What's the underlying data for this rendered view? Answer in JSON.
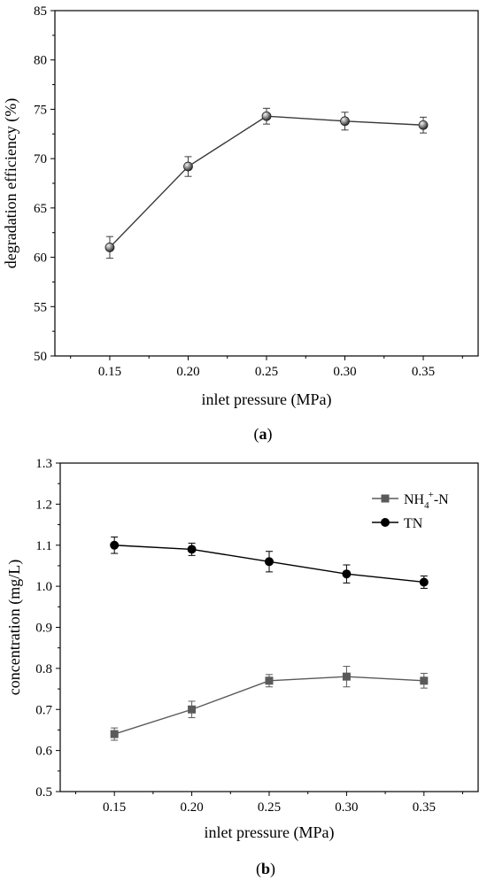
{
  "chart_data": [
    {
      "type": "line",
      "panel_label": "a",
      "xlabel": "inlet pressure (MPa)",
      "ylabel": "degradation efficiency (%)",
      "categories": [
        "0.15",
        "0.20",
        "0.25",
        "0.30",
        "0.35"
      ],
      "x": [
        0.15,
        0.2,
        0.25,
        0.3,
        0.35
      ],
      "xlim": [
        0.115,
        0.385
      ],
      "ylim": [
        50,
        85
      ],
      "yticks": [
        "50",
        "55",
        "60",
        "65",
        "70",
        "75",
        "80",
        "85"
      ],
      "grid": false,
      "legend": "none",
      "series": [
        {
          "values": [
            61.0,
            69.2,
            74.3,
            73.8,
            73.4
          ],
          "errors": [
            1.1,
            1.0,
            0.8,
            0.9,
            0.8
          ],
          "color": "#3a3a3a",
          "marker": "sphere"
        }
      ]
    },
    {
      "type": "line",
      "panel_label": "b",
      "xlabel": "inlet pressure (MPa)",
      "ylabel": "concentration (mg/L)",
      "categories": [
        "0.15",
        "0.20",
        "0.25",
        "0.30",
        "0.35"
      ],
      "x": [
        0.15,
        0.2,
        0.25,
        0.3,
        0.35
      ],
      "xlim": [
        0.115,
        0.385
      ],
      "ylim": [
        0.5,
        1.3
      ],
      "yticks": [
        "0.5",
        "0.6",
        "0.7",
        "0.8",
        "0.9",
        "1.0",
        "1.1",
        "1.2",
        "1.3"
      ],
      "grid": false,
      "legend": "top-right",
      "series": [
        {
          "name": "NH4+-N",
          "legend_base": "NH",
          "legend_sub": "4",
          "legend_sup": "+",
          "legend_tail": "-N",
          "values": [
            0.64,
            0.7,
            0.77,
            0.78,
            0.77
          ],
          "errors": [
            0.015,
            0.02,
            0.015,
            0.025,
            0.018
          ],
          "color": "#5a5a5a",
          "marker": "square"
        },
        {
          "name": "TN",
          "legend_base": "TN",
          "values": [
            1.1,
            1.09,
            1.06,
            1.03,
            1.01
          ],
          "errors": [
            0.02,
            0.015,
            0.025,
            0.022,
            0.015
          ],
          "color": "#000000",
          "marker": "circle"
        }
      ]
    }
  ]
}
